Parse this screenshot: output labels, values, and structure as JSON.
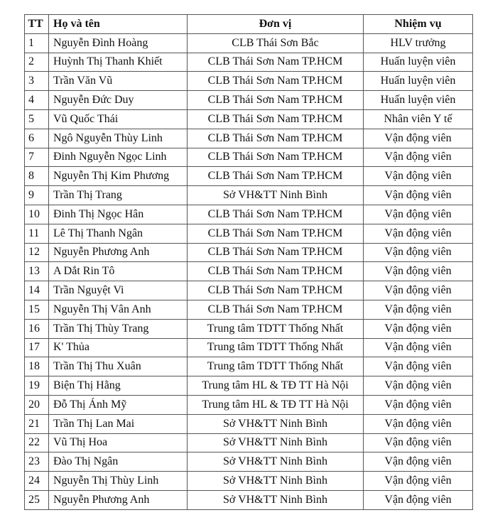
{
  "table": {
    "headers": [
      "TT",
      "Họ và tên",
      "Đơn vị",
      "Nhiệm vụ"
    ],
    "rows": [
      [
        "1",
        "Nguyễn Đình Hoàng",
        "CLB Thái Sơn Bắc",
        "HLV trưởng"
      ],
      [
        "2",
        "Huỳnh Thị Thanh Khiết",
        "CLB Thái Sơn Nam TP.HCM",
        "Huấn luyện viên"
      ],
      [
        "3",
        "Trần Văn Vũ",
        "CLB Thái Sơn Nam TP.HCM",
        "Huấn luyện viên"
      ],
      [
        "4",
        "Nguyễn Đức Duy",
        "CLB Thái Sơn Nam TP.HCM",
        "Huấn luyện viên"
      ],
      [
        "5",
        "Vũ Quốc Thái",
        "CLB Thái Sơn Nam TP.HCM",
        "Nhân viên Y tế"
      ],
      [
        "6",
        "Ngô Nguyễn Thùy Linh",
        "CLB Thái Sơn Nam TP.HCM",
        "Vận động viên"
      ],
      [
        "7",
        "Đinh Nguyễn Ngọc Linh",
        "CLB Thái Sơn Nam TP.HCM",
        "Vận động viên"
      ],
      [
        "8",
        "Nguyễn Thị Kim Phương",
        "CLB Thái Sơn Nam TP.HCM",
        "Vận động viên"
      ],
      [
        "9",
        "Trần Thị Trang",
        "Sở VH&TT Ninh Bình",
        "Vận động viên"
      ],
      [
        "10",
        "Đinh Thị Ngọc Hân",
        "CLB Thái Sơn Nam TP.HCM",
        "Vận động viên"
      ],
      [
        "11",
        "Lê Thị Thanh Ngân",
        "CLB Thái Sơn Nam TP.HCM",
        "Vận động viên"
      ],
      [
        "12",
        "Nguyễn Phương Anh",
        "CLB Thái Sơn Nam TP.HCM",
        "Vận động viên"
      ],
      [
        "13",
        "A Dắt Rin Tô",
        "CLB Thái Sơn Nam TP.HCM",
        "Vận động viên"
      ],
      [
        "14",
        "Trần Nguyệt Vi",
        "CLB Thái Sơn Nam TP.HCM",
        "Vận động viên"
      ],
      [
        "15",
        "Nguyễn Thị Vân Anh",
        "CLB Thái Sơn Nam TP.HCM",
        "Vận động viên"
      ],
      [
        "16",
        "Trần Thị Thùy Trang",
        "Trung tâm TDTT Thống Nhất",
        "Vận động viên"
      ],
      [
        "17",
        "K' Thủa",
        "Trung tâm TDTT Thống Nhất",
        "Vận động viên"
      ],
      [
        "18",
        "Trần Thị Thu Xuân",
        "Trung tâm TDTT Thống Nhất",
        "Vận động viên"
      ],
      [
        "19",
        "Biện Thị Hằng",
        "Trung tâm HL & TĐ TT Hà Nội",
        "Vận động viên"
      ],
      [
        "20",
        "Đỗ Thị Ánh Mỹ",
        "Trung tâm HL & TĐ TT Hà Nội",
        "Vận động viên"
      ],
      [
        "21",
        "Trần Thị Lan Mai",
        "Sở VH&TT Ninh Bình",
        "Vận động viên"
      ],
      [
        "22",
        "Vũ Thị Hoa",
        "Sở VH&TT Ninh Bình",
        "Vận động viên"
      ],
      [
        "23",
        "Đào Thị Ngân",
        "Sở VH&TT Ninh Bình",
        "Vận động viên"
      ],
      [
        "24",
        "Nguyễn Thị Thùy Linh",
        "Sở VH&TT Ninh Bình",
        "Vận động viên"
      ],
      [
        "25",
        "Nguyễn Phương Anh",
        "Sở VH&TT Ninh Bình",
        "Vận động viên"
      ]
    ]
  }
}
